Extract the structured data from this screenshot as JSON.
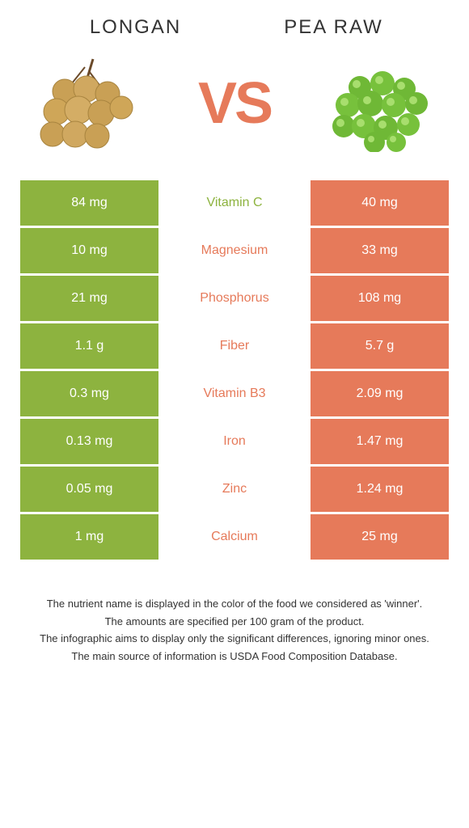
{
  "header": {
    "left_title": "LONGAN",
    "right_title": "PEA RAW",
    "vs_text": "VS"
  },
  "colors": {
    "left": "#8db33f",
    "right": "#e67a5a",
    "vs": "#e67a5a",
    "longan_fruit": "#c9a055",
    "longan_stem": "#6b4a2a",
    "pea": "#6fb836",
    "pea_highlight": "#a8de6e"
  },
  "nutrients": [
    {
      "name": "Vitamin C",
      "left": "84 mg",
      "right": "40 mg",
      "winner": "left"
    },
    {
      "name": "Magnesium",
      "left": "10 mg",
      "right": "33 mg",
      "winner": "right"
    },
    {
      "name": "Phosphorus",
      "left": "21 mg",
      "right": "108 mg",
      "winner": "right"
    },
    {
      "name": "Fiber",
      "left": "1.1 g",
      "right": "5.7 g",
      "winner": "right"
    },
    {
      "name": "Vitamin B3",
      "left": "0.3 mg",
      "right": "2.09 mg",
      "winner": "right"
    },
    {
      "name": "Iron",
      "left": "0.13 mg",
      "right": "1.47 mg",
      "winner": "right"
    },
    {
      "name": "Zinc",
      "left": "0.05 mg",
      "right": "1.24 mg",
      "winner": "right"
    },
    {
      "name": "Calcium",
      "left": "1 mg",
      "right": "25 mg",
      "winner": "right"
    }
  ],
  "footer": {
    "line1": "The nutrient name is displayed in the color of the food we considered as 'winner'.",
    "line2": "The amounts are specified per 100 gram of the product.",
    "line3": "The infographic aims to display only the significant differences, ignoring minor ones.",
    "line4": "The main source of information is USDA Food Composition Database."
  }
}
